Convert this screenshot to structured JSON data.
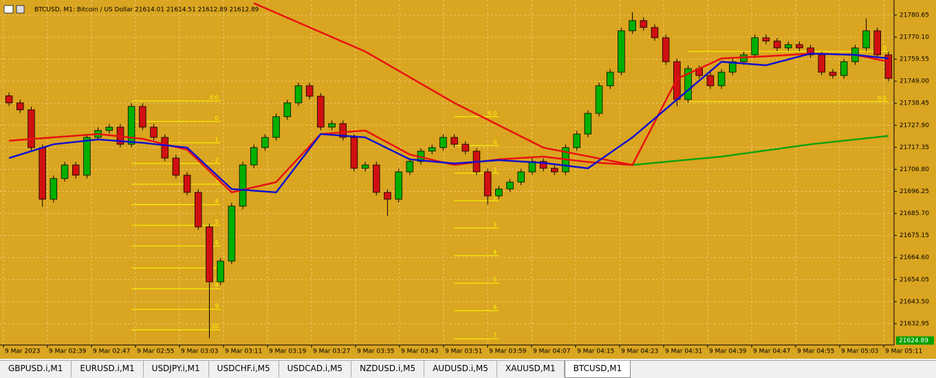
{
  "header": {
    "title": "BTCUSD, M1:  Bitcoin / US Dollar  21614.01 21614.51 21612.89 21612.89"
  },
  "chart_data": {
    "type": "candlestick",
    "ylim": [
      21623.4,
      21786.2
    ],
    "yticks": [
      {
        "value": 21780.65,
        "label": "21780.65"
      },
      {
        "value": 21770.1,
        "label": "21770.10"
      },
      {
        "value": 21759.55,
        "label": "21759.55"
      },
      {
        "value": 21749,
        "label": "21749.00"
      },
      {
        "value": 21738.45,
        "label": "21738.45"
      },
      {
        "value": 21727.9,
        "label": "21727.90"
      },
      {
        "value": 21717.35,
        "label": "21717.35"
      },
      {
        "value": 21706.8,
        "label": "21706.80"
      },
      {
        "value": 21696.25,
        "label": "21696.25"
      },
      {
        "value": 21685.7,
        "label": "21685.70"
      },
      {
        "value": 21675.15,
        "label": "21675.15"
      },
      {
        "value": 21664.6,
        "label": "21664.60"
      },
      {
        "value": 21654.05,
        "label": "21654.05"
      },
      {
        "value": 21643.5,
        "label": "21643.50"
      },
      {
        "value": 21632.95,
        "label": "21632.95"
      }
    ],
    "x_labels": [
      "9 Mar 2023",
      "9 Mar 02:39",
      "9 Mar 02:47",
      "9 Mar 02:55",
      "9 Mar 03:03",
      "9 Mar 03:11",
      "9 Mar 03:19",
      "9 Mar 03:27",
      "9 Mar 03:35",
      "9 Mar 03:43",
      "9 Mar 03:51",
      "9 Mar 03:59",
      "9 Mar 04:07",
      "9 Mar 04:15",
      "9 Mar 04:23",
      "9 Mar 04:31",
      "9 Mar 04:39",
      "9 Mar 04:47",
      "9 Mar 04:55",
      "9 Mar 05:03",
      "9 Mar 05:11"
    ],
    "up_color": "#00b000",
    "down_color": "#d01010",
    "grid": true,
    "open": [
      21742.0,
      21738.6,
      21735.3,
      21717.2,
      21692.5,
      21702.4,
      21708.9,
      21704.0,
      21722.1,
      21725.4,
      21727.0,
      21718.8,
      21736.9,
      21727.0,
      21722.1,
      21712.2,
      21704.0,
      21695.8,
      21679.3,
      21653.0,
      21662.9,
      21689.2,
      21708.9,
      21717.2,
      21722.1,
      21732.0,
      21738.6,
      21746.8,
      21741.8,
      21727.0,
      21728.7,
      21722.1,
      21707.3,
      21708.9,
      21695.8,
      21692.5,
      21705.6,
      21710.6,
      21715.5,
      21717.2,
      21722.1,
      21718.8,
      21715.5,
      21705.6,
      21694.1,
      21697.4,
      21700.7,
      21705.6,
      21710.6,
      21707.3,
      21705.6,
      21717.2,
      21723.7,
      21733.6,
      21746.8,
      21753.3,
      21773.1,
      21778.0,
      21774.7,
      21769.8,
      21758.3,
      21740.2,
      21755.0,
      21751.7,
      21746.8,
      21753.3,
      21758.3,
      21761.6,
      21769.8,
      21768.2,
      21764.9,
      21766.5,
      21764.9,
      21761.6,
      21753.3,
      21751.7,
      21758.3,
      21764.9,
      21773.1,
      21761.6
    ],
    "high": [
      21743.5,
      21740.1,
      21736.8,
      21718.7,
      21703.9,
      21710.4,
      21710.4,
      21723.6,
      21726.9,
      21728.5,
      21728.5,
      21738.4,
      21738.4,
      21728.5,
      21723.6,
      21713.7,
      21705.5,
      21697.3,
      21680.8,
      21664.4,
      21690.7,
      21710.4,
      21718.7,
      21723.6,
      21733.5,
      21740.1,
      21748.3,
      21748.3,
      21743.3,
      21730.2,
      21730.2,
      21723.6,
      21710.4,
      21710.4,
      21697.3,
      21707.1,
      21712.1,
      21717.0,
      21718.7,
      21723.6,
      21723.6,
      21720.3,
      21717.0,
      21707.1,
      21698.9,
      21702.2,
      21707.1,
      21712.1,
      21712.1,
      21708.8,
      21718.7,
      21725.2,
      21735.1,
      21748.3,
      21754.8,
      21774.6,
      21782.0,
      21779.5,
      21776.2,
      21771.3,
      21759.8,
      21756.5,
      21756.5,
      21753.2,
      21754.8,
      21759.8,
      21763.1,
      21771.3,
      21771.3,
      21769.7,
      21768.0,
      21768.0,
      21766.4,
      21763.1,
      21754.8,
      21759.8,
      21766.4,
      21779.0,
      21774.6,
      21763.1
    ],
    "low": [
      21737.1,
      21733.8,
      21715.7,
      21688.9,
      21691.0,
      21700.9,
      21702.5,
      21702.5,
      21720.6,
      21723.9,
      21717.3,
      21717.3,
      21725.5,
      21720.6,
      21710.7,
      21702.5,
      21694.3,
      21677.8,
      21626.0,
      21651.5,
      21661.4,
      21687.7,
      21707.4,
      21715.7,
      21720.6,
      21730.5,
      21737.1,
      21740.3,
      21725.5,
      21725.5,
      21720.6,
      21705.8,
      21705.8,
      21694.3,
      21684.6,
      21691.0,
      21704.1,
      21709.1,
      21714.0,
      21715.7,
      21717.3,
      21714.0,
      21704.1,
      21690.0,
      21692.6,
      21695.9,
      21699.2,
      21704.1,
      21705.8,
      21704.1,
      21704.1,
      21715.7,
      21722.2,
      21732.1,
      21745.3,
      21751.8,
      21771.6,
      21773.2,
      21768.3,
      21756.8,
      21737.0,
      21738.7,
      21750.2,
      21745.3,
      21745.3,
      21751.8,
      21756.8,
      21760.1,
      21766.7,
      21763.4,
      21763.4,
      21763.4,
      21760.1,
      21751.8,
      21750.2,
      21750.2,
      21756.8,
      21763.4,
      21760.1,
      21748.8
    ],
    "close": [
      21738.6,
      21735.3,
      21717.2,
      21692.5,
      21702.4,
      21708.9,
      21704.0,
      21722.1,
      21725.4,
      21727.0,
      21718.8,
      21736.9,
      21727.0,
      21722.1,
      21712.2,
      21704.0,
      21695.8,
      21679.3,
      21653.0,
      21662.9,
      21689.2,
      21708.9,
      21717.2,
      21722.1,
      21732.0,
      21738.6,
      21746.8,
      21741.8,
      21727.0,
      21728.7,
      21722.1,
      21707.3,
      21708.9,
      21695.8,
      21692.5,
      21705.6,
      21710.6,
      21715.5,
      21717.2,
      21722.1,
      21718.8,
      21715.5,
      21705.6,
      21694.1,
      21697.4,
      21700.7,
      21705.6,
      21710.6,
      21707.3,
      21705.6,
      21717.2,
      21723.7,
      21733.6,
      21746.8,
      21753.3,
      21773.1,
      21778.0,
      21774.7,
      21769.8,
      21758.3,
      21740.2,
      21755.0,
      21751.7,
      21746.8,
      21753.3,
      21758.3,
      21761.6,
      21769.8,
      21768.2,
      21764.9,
      21766.5,
      21764.9,
      21761.6,
      21753.3,
      21751.7,
      21758.3,
      21764.9,
      21773.1,
      21761.6,
      21750.3
    ],
    "lines": [
      {
        "color": "#e81010",
        "x": [
          22,
          32,
          40,
          48,
          56
        ],
        "values": [
          21786.3,
          21763.2,
          21738.6,
          21717.2,
          21708.9
        ]
      },
      {
        "color": "#10a010",
        "x": [
          56,
          64,
          72,
          79
        ],
        "values": [
          21708.9,
          21712.9,
          21718.8,
          21722.8
        ]
      },
      {
        "color": "#e81010",
        "x": [
          0,
          4,
          8,
          12,
          16,
          20,
          24,
          28,
          32,
          36,
          40,
          44,
          48,
          52,
          56,
          60,
          64,
          68,
          72,
          76,
          79
        ],
        "values": [
          21720.5,
          21722.1,
          21723.7,
          21721.4,
          21716.2,
          21695.8,
          21700.7,
          21723.7,
          21725.4,
          21713.9,
          21708.9,
          21711.6,
          21712.9,
          21710.3,
          21708.9,
          21750.1,
          21759.9,
          21760.9,
          21762.2,
          21761.6,
          21758.3
        ]
      },
      {
        "color": "#1010d0",
        "x": [
          0,
          4,
          8,
          12,
          16,
          20,
          24,
          28,
          32,
          36,
          40,
          44,
          48,
          52,
          56,
          60,
          64,
          68,
          72,
          76,
          79
        ],
        "values": [
          21712.2,
          21718.8,
          21721.1,
          21719.5,
          21717.2,
          21697.4,
          21695.8,
          21723.7,
          21722.1,
          21711.6,
          21709.6,
          21711.2,
          21709.9,
          21707.3,
          21722.1,
          21740.2,
          21758.3,
          21756.6,
          21762.2,
          21761.6,
          21759.9
        ]
      }
    ],
    "fibo": [
      {
        "from": 11,
        "to": 19,
        "color": "#ffff00",
        "levels": [
          {
            "label": "0.0",
            "price": 21739.5
          },
          {
            "label": "0",
            "price": 21729.7
          },
          {
            "label": "1",
            "price": 21719.5
          },
          {
            "label": "2",
            "price": 21709.6
          },
          {
            "label": "3",
            "price": 21699.7
          },
          {
            "label": "4",
            "price": 21689.9
          },
          {
            "label": "5",
            "price": 21680.0
          },
          {
            "label": "6",
            "price": 21670.1
          },
          {
            "label": "7",
            "price": 21659.6
          },
          {
            "label": "8",
            "price": 21649.7
          },
          {
            "label": "9",
            "price": 21639.8
          },
          {
            "label": "10",
            "price": 21630.0
          }
        ]
      },
      {
        "from": 40,
        "to": 44,
        "color": "#ffff00",
        "levels": [
          {
            "label": "0.0",
            "price": 21732.0
          },
          {
            "label": "0",
            "price": 21718.2
          },
          {
            "label": "1",
            "price": 21705.0
          },
          {
            "label": "2",
            "price": 21691.8
          },
          {
            "label": "3",
            "price": 21678.7
          },
          {
            "label": "4",
            "price": 21665.5
          },
          {
            "label": "5",
            "price": 21652.3
          },
          {
            "label": "6",
            "price": 21639.2
          },
          {
            "label": "7",
            "price": 21625.7
          }
        ]
      },
      {
        "from": 61,
        "to": 79,
        "color": "#ffff00",
        "levels": [
          {
            "label": "0",
            "price": 21763.2
          },
          {
            "label": "0.0",
            "price": 21739.2
          }
        ]
      }
    ],
    "price_tag": 21624.89,
    "price_tag_color": "#00a000"
  },
  "tabs": {
    "items": [
      "GBPUSD.i,M1",
      "EURUSD.i,M1",
      "USDJPY.i,M1",
      "USDCHF.i,M5",
      "USDCAD.i,M5",
      "NZDUSD.i,M5",
      "AUDUSD.i,M5",
      "XAUUSD,M1",
      "BTCUSD,M1"
    ],
    "active": 8
  }
}
